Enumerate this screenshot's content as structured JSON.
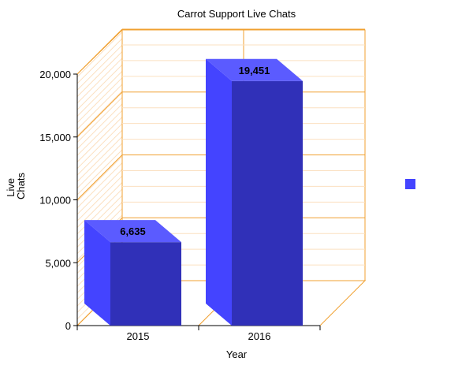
{
  "chart_data": {
    "type": "bar",
    "title": "Carrot Support Live Chats",
    "xlabel": "Year",
    "ylabel_lines": [
      "Live",
      "Chats"
    ],
    "categories": [
      "2015",
      "2016"
    ],
    "series": [
      {
        "values": [
          6635,
          19451
        ],
        "color": "#4444ff"
      }
    ],
    "data_labels": [
      "6,635",
      "19,451"
    ],
    "ylim": [
      0,
      20000
    ],
    "yticks": [
      0,
      5000,
      10000,
      15000,
      20000
    ],
    "ytick_labels": [
      "0",
      "5,000",
      "10,000",
      "15,000",
      "20,000"
    ],
    "grid": true,
    "grid_color": "#f0a030",
    "legend": "right",
    "legend_color": "#4444ff"
  }
}
